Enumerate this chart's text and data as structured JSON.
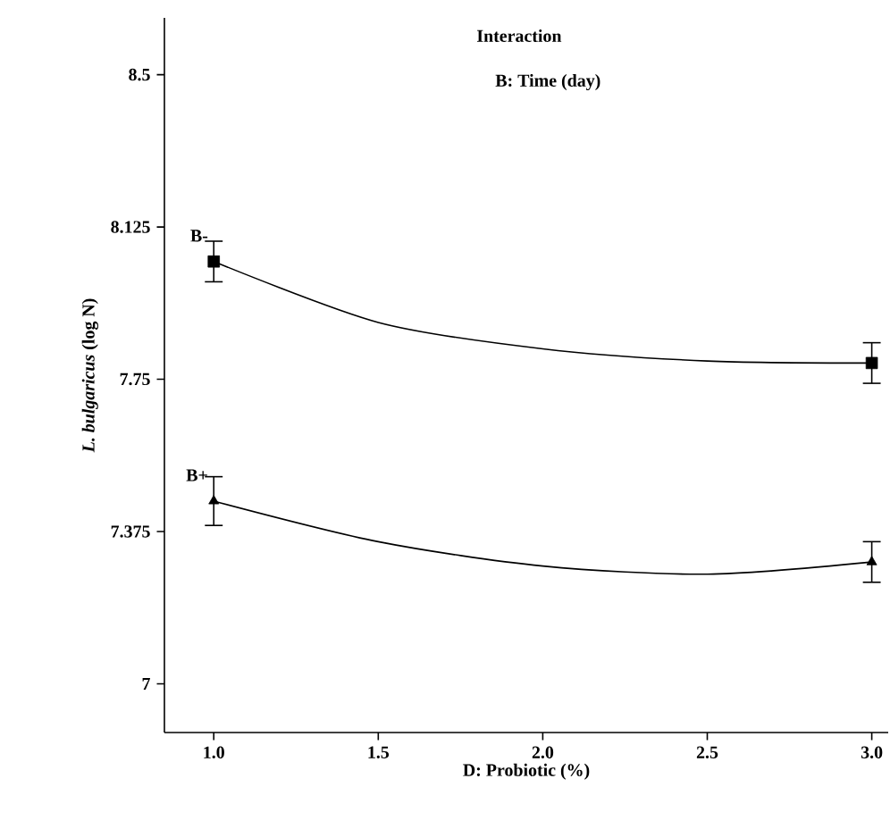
{
  "chart_data": {
    "type": "scatter",
    "ylabel": "*L. bulgaricus* (log N)",
    "xlabel": "D: Probiotic (%)",
    "annotations": [
      "Interaction",
      "B: Time (day)"
    ],
    "xlim": [
      0.85,
      3.05
    ],
    "ylim": [
      6.88,
      8.64
    ],
    "xticks": [
      {
        "value": 1,
        "label": "1.0"
      },
      {
        "value": 1.5,
        "label": "1.5"
      },
      {
        "value": 2,
        "label": "2.0"
      },
      {
        "value": 2.5,
        "label": "2.5"
      },
      {
        "value": 3,
        "label": "3.0"
      }
    ],
    "yticks": [
      7,
      7.375,
      7.75,
      8.125,
      8.5
    ],
    "series": [
      {
        "name": "B-",
        "color": "#000000",
        "marker": "square",
        "x": [
          1,
          3
        ],
        "values": [
          8.04,
          7.79
        ],
        "errors": [
          0.05,
          0.05
        ]
      },
      {
        "name": "B+",
        "color": "#000000",
        "marker": "triangle",
        "x": [
          1,
          3
        ],
        "values": [
          7.45,
          7.3
        ],
        "errors": [
          0.06,
          0.05
        ]
      },
      {
        "type": "line",
        "color": "#000000",
        "marker": "none",
        "x": [
          1,
          1.5,
          2,
          2.5,
          3
        ],
        "values": [
          8.04,
          7.89,
          7.825,
          7.795,
          7.79
        ]
      },
      {
        "type": "line",
        "color": "#000000",
        "marker": "none",
        "x": [
          1,
          1.5,
          2,
          2.5,
          3
        ],
        "values": [
          7.45,
          7.35,
          7.29,
          7.27,
          7.3
        ]
      }
    ]
  }
}
